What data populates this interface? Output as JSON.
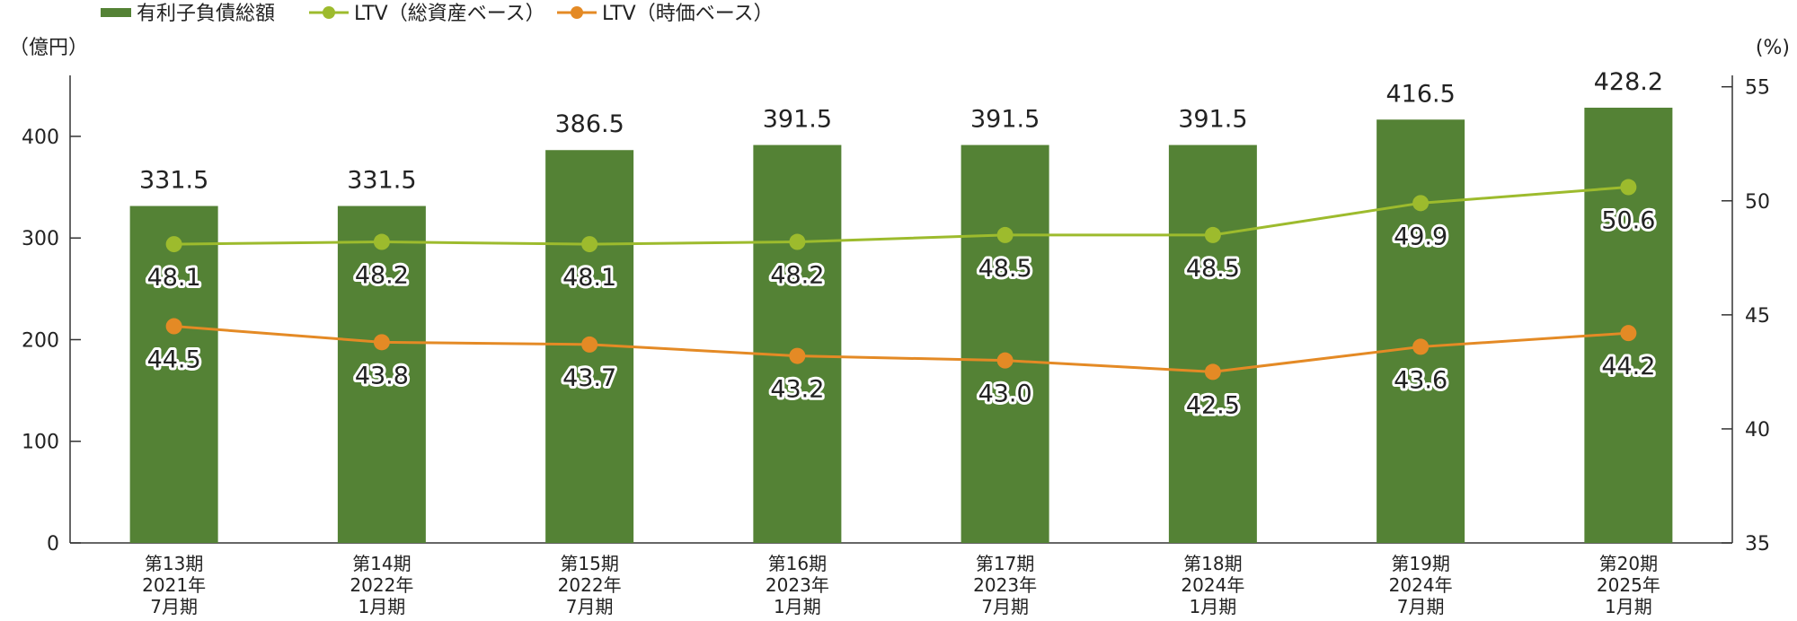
{
  "chart_data": {
    "type": "bar",
    "categories": [
      [
        "第13期",
        "2021年",
        "7月期"
      ],
      [
        "第14期",
        "2022年",
        "1月期"
      ],
      [
        "第15期",
        "2022年",
        "7月期"
      ],
      [
        "第16期",
        "2023年",
        "1月期"
      ],
      [
        "第17期",
        "2023年",
        "7月期"
      ],
      [
        "第18期",
        "2024年",
        "1月期"
      ],
      [
        "第19期",
        "2024年",
        "7月期"
      ],
      [
        "第20期",
        "2025年",
        "1月期"
      ]
    ],
    "series": [
      {
        "name": "有利子負債総額",
        "type": "bar",
        "axis": "left",
        "color": "#548235",
        "values": [
          331.5,
          331.5,
          386.5,
          391.5,
          391.5,
          391.5,
          416.5,
          428.2
        ],
        "labels": [
          "331.5",
          "331.5",
          "386.5",
          "391.5",
          "391.5",
          "391.5",
          "416.5",
          "428.2"
        ]
      },
      {
        "name": "LTV（総資産ベース）",
        "type": "line",
        "axis": "right",
        "color": "#9dbb2d",
        "values": [
          48.1,
          48.2,
          48.1,
          48.2,
          48.5,
          48.5,
          49.9,
          50.6
        ],
        "labels": [
          "48.1",
          "48.2",
          "48.1",
          "48.2",
          "48.5",
          "48.5",
          "49.9",
          "50.6"
        ]
      },
      {
        "name": "LTV（時価ベース）",
        "type": "line",
        "axis": "right",
        "color": "#e48a25",
        "values": [
          44.5,
          43.8,
          43.7,
          43.2,
          43.0,
          42.5,
          43.6,
          44.2
        ],
        "labels": [
          "44.5",
          "43.8",
          "43.7",
          "43.2",
          "43.0",
          "42.5",
          "43.6",
          "44.2"
        ]
      }
    ],
    "y_left": {
      "unit": "（億円）",
      "min": 0,
      "max": 460,
      "ticks": [
        0,
        100,
        200,
        300,
        400
      ]
    },
    "y_right": {
      "unit": "(%)",
      "min": 35,
      "max": 55.5,
      "ticks": [
        35,
        40,
        45,
        50,
        55
      ]
    },
    "legend_position": "top-left",
    "grid": false
  }
}
